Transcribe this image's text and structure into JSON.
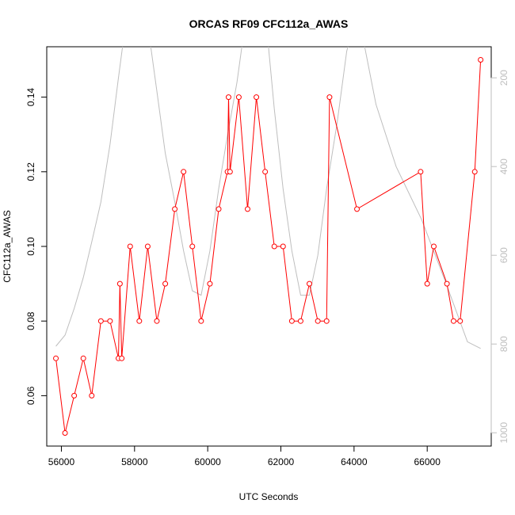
{
  "chart_data": {
    "type": "line",
    "title": "ORCAS RF09 CFC112a_AWAS",
    "xlabel": "UTC Seconds",
    "ylabel": "CFC112a_AWAS",
    "xlim": [
      55600,
      67750
    ],
    "ylim": [
      0.0465,
      0.1535
    ],
    "x_ticks": [
      56000,
      58000,
      60000,
      62000,
      64000,
      66000
    ],
    "x_tick_labels": [
      "56000",
      "58000",
      "60000",
      "62000",
      "64000",
      "66000"
    ],
    "y_ticks": [
      0.06,
      0.08,
      0.1,
      0.12,
      0.14
    ],
    "y_tick_labels": [
      "0.06",
      "0.08",
      "0.10",
      "0.12",
      "0.14"
    ],
    "y2_ticks": [
      200,
      400,
      600,
      800,
      1000
    ],
    "y2_tick_labels": [
      "200",
      "400",
      "600",
      "800",
      "1000"
    ],
    "y2lim": [
      1030,
      130
    ],
    "y2_reversed": true,
    "grid": false,
    "series": [
      {
        "role": "primary",
        "style": "line+open-circles",
        "color": "#ff0000",
        "x": [
          55850,
          56100,
          56350,
          56600,
          56830,
          57080,
          57330,
          57560,
          57600,
          57650,
          57880,
          58130,
          58360,
          58610,
          58840,
          59100,
          59340,
          59580,
          59820,
          60060,
          60300,
          60540,
          60570,
          60610,
          60850,
          61090,
          61330,
          61570,
          61820,
          62060,
          62300,
          62540,
          62780,
          63010,
          63250,
          63330,
          64080,
          65820,
          66000,
          66180,
          66540,
          66720,
          66900,
          67300,
          67460
        ],
        "y": [
          0.07,
          0.05,
          0.06,
          0.07,
          0.06,
          0.08,
          0.08,
          0.07,
          0.09,
          0.07,
          0.1,
          0.08,
          0.1,
          0.08,
          0.09,
          0.11,
          0.12,
          0.1,
          0.08,
          0.09,
          0.11,
          0.12,
          0.14,
          0.12,
          0.14,
          0.11,
          0.14,
          0.12,
          0.1,
          0.1,
          0.08,
          0.08,
          0.09,
          0.08,
          0.08,
          0.14,
          0.11,
          0.12,
          0.09,
          0.1,
          0.09,
          0.08,
          0.08,
          0.12,
          0.15
        ]
      },
      {
        "role": "secondary",
        "axis": "right",
        "color": "#bebebe",
        "x": [
          55850,
          56100,
          56350,
          56600,
          56830,
          57080,
          57330,
          57560,
          57800,
          58080,
          58360,
          58610,
          58840,
          59100,
          59340,
          59580,
          59820,
          60060,
          60300,
          60540,
          60800,
          61050,
          61330,
          61570,
          61820,
          62060,
          62300,
          62540,
          62780,
          63010,
          63250,
          63540,
          63800,
          64100,
          64600,
          65150,
          65850,
          66500,
          67100,
          67460
        ],
        "y": [
          805,
          780,
          720,
          650,
          570,
          480,
          350,
          200,
          50,
          -50,
          80,
          230,
          370,
          480,
          590,
          680,
          690,
          590,
          450,
          330,
          210,
          60,
          -40,
          50,
          270,
          450,
          590,
          690,
          690,
          600,
          450,
          300,
          140,
          50,
          260,
          400,
          520,
          660,
          795,
          810
        ]
      }
    ]
  }
}
